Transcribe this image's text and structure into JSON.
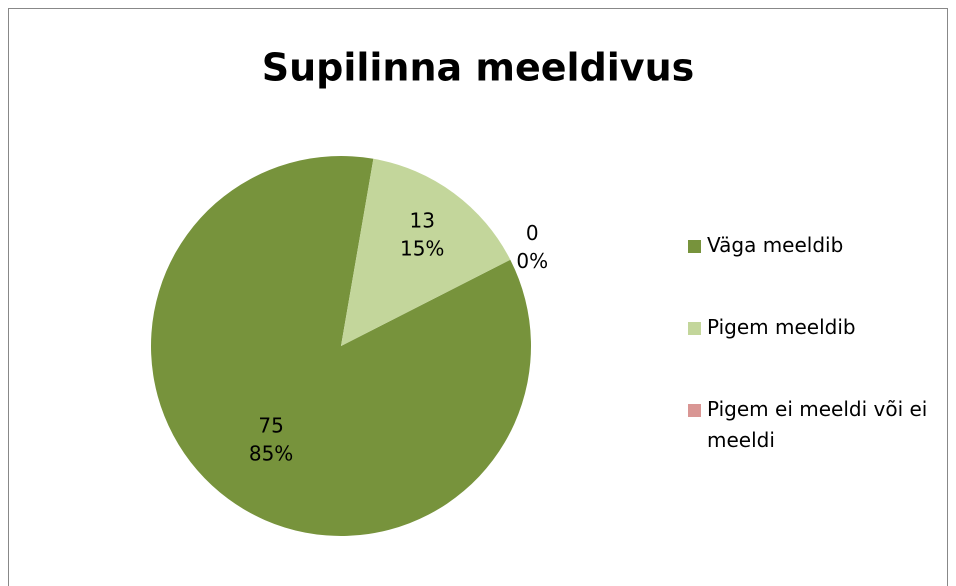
{
  "chart_data": {
    "type": "pie",
    "title": "Supilinna meeldivus",
    "categories": [
      "Väga meeldib",
      "Pigem meeldib",
      "Pigem ei meeldi või ei meeldi"
    ],
    "values": [
      75,
      13,
      0
    ],
    "percent_labels": [
      "85%",
      "15%",
      "0%"
    ],
    "colors": [
      "#77933c",
      "#c3d69b",
      "#d99694"
    ],
    "legend": "right"
  }
}
